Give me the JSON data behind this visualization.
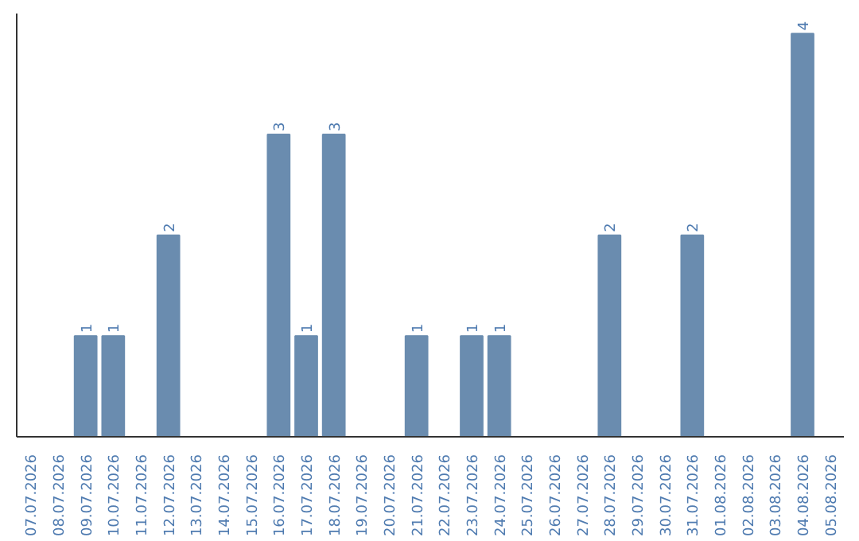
{
  "chart_data": {
    "type": "bar",
    "categories": [
      "07.07.2026",
      "08.07.2026",
      "09.07.2026",
      "10.07.2026",
      "11.07.2026",
      "12.07.2026",
      "13.07.2026",
      "14.07.2026",
      "15.07.2026",
      "16.07.2026",
      "17.07.2026",
      "18.07.2026",
      "19.07.2026",
      "20.07.2026",
      "21.07.2026",
      "22.07.2026",
      "23.07.2026",
      "24.07.2026",
      "25.07.2026",
      "26.07.2026",
      "27.07.2026",
      "28.07.2026",
      "29.07.2026",
      "30.07.2026",
      "31.07.2026",
      "01.08.2026",
      "02.08.2026",
      "03.08.2026",
      "04.08.2026",
      "05.08.2026"
    ],
    "values": [
      0,
      0,
      1,
      1,
      0,
      2,
      0,
      0,
      0,
      3,
      1,
      3,
      0,
      0,
      1,
      0,
      1,
      1,
      0,
      0,
      0,
      2,
      0,
      0,
      2,
      0,
      0,
      0,
      4,
      0
    ],
    "value_labels": [
      null,
      null,
      "1",
      "1",
      null,
      "2",
      null,
      null,
      null,
      "3",
      "1",
      "3",
      null,
      null,
      "1",
      null,
      "1",
      "1",
      null,
      null,
      null,
      "2",
      null,
      null,
      "2",
      null,
      null,
      null,
      "4",
      null
    ],
    "color": "#6a8caf",
    "ylim": [
      0,
      4.2
    ],
    "tick_labels": "x",
    "grid": false
  }
}
